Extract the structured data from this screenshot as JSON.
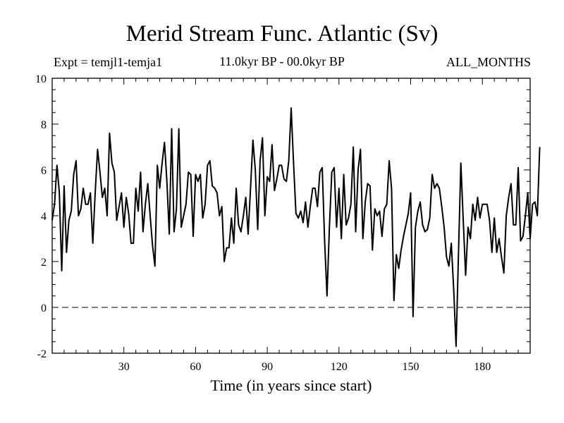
{
  "chart_data": {
    "type": "line",
    "title": "Merid Stream Func. Atlantic (Sv)",
    "subtitle_left": "Expt = temjl1-temja1",
    "subtitle_center": "11.0kyr BP - 00.0kyr BP",
    "subtitle_right": "ALL_MONTHS",
    "xlabel": "Time (in years since start)",
    "ylabel": "",
    "xlim": [
      0,
      200
    ],
    "ylim": [
      -2,
      10
    ],
    "xticks": [
      30,
      60,
      90,
      120,
      150,
      180
    ],
    "yticks": [
      -2,
      0,
      2,
      4,
      6,
      8,
      10
    ],
    "reference_line": 0,
    "series": [
      {
        "name": "Merid Stream Func.",
        "x_start": 0,
        "x_step": 1,
        "values": [
          3.8,
          4.5,
          6.2,
          5.0,
          1.6,
          5.3,
          2.4,
          3.8,
          4.2,
          5.8,
          6.4,
          4.0,
          4.3,
          5.2,
          4.5,
          4.5,
          5.0,
          2.8,
          5.0,
          6.9,
          5.9,
          4.8,
          5.2,
          4.0,
          7.6,
          6.3,
          5.9,
          3.8,
          4.4,
          5.0,
          3.5,
          4.8,
          4.1,
          2.8,
          2.8,
          5.2,
          4.2,
          5.9,
          3.3,
          4.5,
          5.4,
          4.0,
          2.7,
          1.8,
          6.2,
          5.2,
          6.3,
          7.2,
          5.5,
          3.2,
          7.8,
          3.3,
          4.3,
          7.8,
          3.5,
          4.0,
          4.5,
          5.9,
          5.8,
          3.1,
          5.8,
          5.5,
          5.8,
          3.9,
          4.5,
          6.2,
          6.4,
          5.3,
          5.2,
          5.0,
          4.0,
          4.4,
          2.0,
          2.6,
          2.6,
          3.9,
          2.8,
          5.2,
          3.6,
          3.3,
          4.0,
          4.8,
          3.2,
          5.2,
          7.3,
          6.0,
          3.4,
          6.4,
          7.4,
          4.0,
          5.7,
          5.5,
          7.1,
          5.1,
          5.6,
          6.2,
          6.2,
          5.6,
          5.5,
          6.4,
          8.7,
          6.3,
          4.1,
          3.9,
          4.2,
          3.7,
          4.6,
          3.5,
          4.4,
          5.2,
          5.2,
          4.4,
          5.9,
          6.1,
          2.9,
          0.5,
          3.5,
          5.9,
          6.1,
          3.5,
          5.2,
          3.0,
          5.8,
          3.6,
          3.9,
          4.5,
          7.0,
          3.3,
          6.0,
          6.9,
          3.0,
          4.6,
          5.4,
          5.3,
          2.5,
          4.3,
          4.0,
          4.2,
          3.1,
          4.3,
          4.5,
          6.4,
          5.2,
          0.3,
          2.3,
          1.7,
          2.5,
          3.1,
          3.6,
          4.1,
          5.0,
          -0.4,
          3.5,
          4.2,
          4.6,
          3.6,
          3.3,
          3.4,
          3.9,
          5.8,
          5.2,
          5.4,
          5.2,
          4.4,
          3.5,
          2.2,
          1.8,
          2.8,
          0.8,
          -1.7,
          2.3,
          6.3,
          3.8,
          1.4,
          3.5,
          3.0,
          4.5,
          3.8,
          4.8,
          3.9,
          4.5,
          4.5,
          4.5,
          3.8,
          2.4,
          3.9,
          2.4,
          3.0,
          2.2,
          1.5,
          4.0,
          4.8,
          5.4,
          3.6,
          3.6,
          6.1,
          2.9,
          3.1,
          4.0,
          5.0,
          3.0,
          4.5,
          4.6,
          4.0,
          7.0
        ]
      }
    ]
  }
}
